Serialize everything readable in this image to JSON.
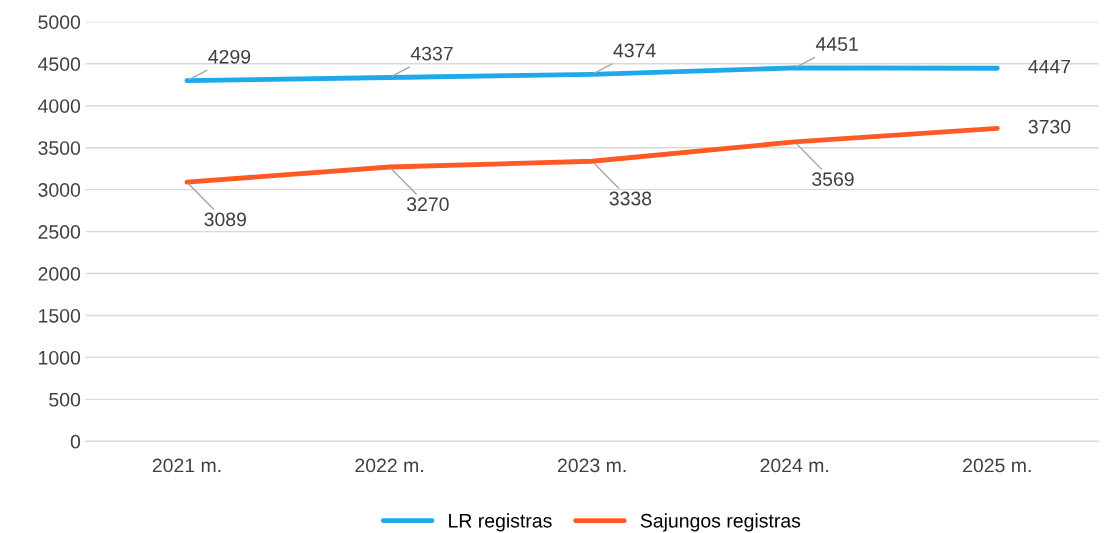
{
  "chart_data": {
    "type": "line",
    "categories": [
      "2021 m.",
      "2022 m.",
      "2023 m.",
      "2024 m.",
      "2025 m."
    ],
    "series": [
      {
        "name": "LR registras",
        "color": "#1fa8ea",
        "values": [
          4299,
          4337,
          4374,
          4451,
          4447
        ]
      },
      {
        "name": "Sajungos registras",
        "color": "#ff5a26",
        "values": [
          3089,
          3270,
          3338,
          3569,
          3730
        ]
      }
    ],
    "ylim": [
      0,
      5000
    ],
    "yticks": [
      0,
      500,
      1000,
      1500,
      2000,
      2500,
      3000,
      3500,
      4000,
      4500,
      5000
    ],
    "grid": "y",
    "legend": "bottom",
    "data_labels": true,
    "marker": "none",
    "line_style": "solid"
  }
}
